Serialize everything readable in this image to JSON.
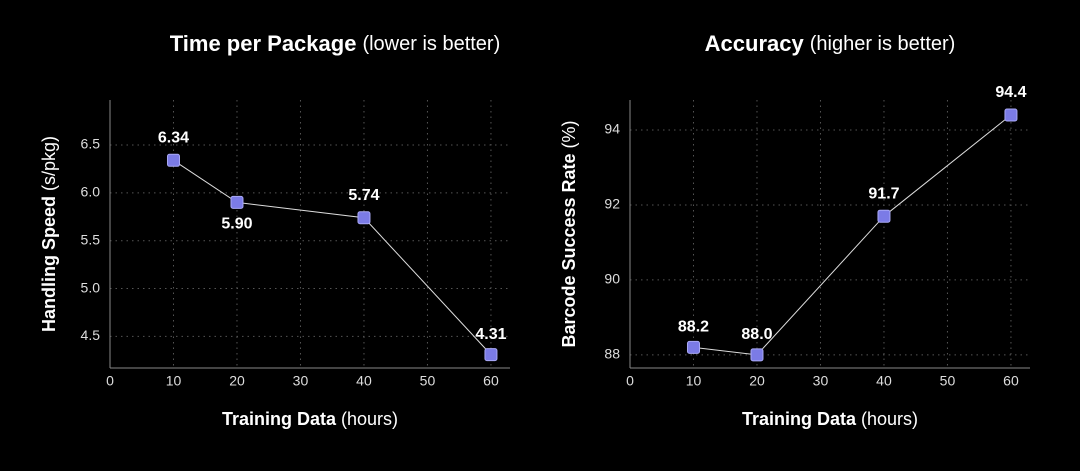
{
  "chart_data": [
    {
      "type": "line",
      "title": "Time per Package",
      "title_note": "(lower is better)",
      "xlabel": "Training Data",
      "xlabel_note": "(hours)",
      "ylabel": "Handling Speed",
      "ylabel_note": "(s/pkg)",
      "x": [
        10,
        20,
        40,
        60
      ],
      "values": [
        6.34,
        5.9,
        5.74,
        4.31
      ],
      "value_labels": [
        "6.34",
        "5.90",
        "5.74",
        "4.31"
      ],
      "color": "#7b7be6",
      "xlim": [
        0,
        63
      ],
      "xticks": [
        0,
        10,
        20,
        30,
        40,
        50,
        60
      ],
      "ylim": [
        4.17,
        6.97
      ],
      "yticks": [
        4.5,
        {
          "value": 5.0,
          "label": "5.0"
        },
        5.5,
        {
          "value": 6.0,
          "label": "6.0"
        },
        6.5
      ],
      "grid": true
    },
    {
      "type": "line",
      "title": "Accuracy",
      "title_note": "(higher is better)",
      "xlabel": "Training Data",
      "xlabel_note": "(hours)",
      "ylabel": "Barcode Success Rate",
      "ylabel_note": "(%)",
      "x": [
        10,
        20,
        40,
        60
      ],
      "values": [
        88.2,
        88.0,
        91.7,
        94.4
      ],
      "value_labels": [
        "88.2",
        "88.0",
        "91.7",
        "94.4"
      ],
      "color": "#7b7be6",
      "xlim": [
        0,
        63
      ],
      "xticks": [
        0,
        10,
        20,
        30,
        40,
        50,
        60
      ],
      "ylim": [
        87.65,
        94.8
      ],
      "yticks": [
        88,
        90,
        92,
        94
      ],
      "grid": true
    }
  ]
}
